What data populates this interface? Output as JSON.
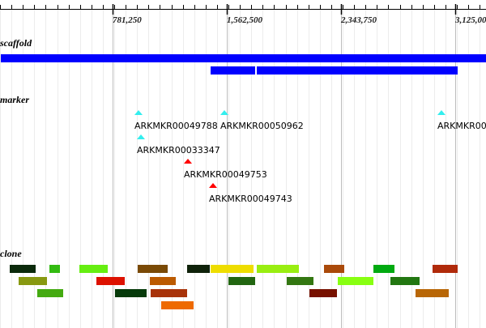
{
  "ruler": {
    "tick_labels": [
      "781,250",
      "1,562,500",
      "2,343,750",
      "3,125,00"
    ]
  },
  "tracks": {
    "scaffold": {
      "label": "scaffold",
      "color": "#0000ff"
    },
    "marker": {
      "label": "marker",
      "items": [
        {
          "name": "ARKMKR00049788",
          "color": "#33eeee"
        },
        {
          "name": "ARKMKR00050962",
          "color": "#33eeee"
        },
        {
          "name": "ARKMKR000",
          "color": "#33eeee"
        },
        {
          "name": "ARKMKR00033347",
          "color": "#33eeee"
        },
        {
          "name": "ARKMKR00049753",
          "color": "#ff0000"
        },
        {
          "name": "ARKMKR00049743",
          "color": "#ff0000"
        }
      ]
    },
    "clone": {
      "label": "clone",
      "colors": [
        "#0b2a0b",
        "#33bb11",
        "#66ee11",
        "#7a4a06",
        "#0f220a",
        "#eedd00",
        "#99ee11",
        "#aa4a0a",
        "#00aa11",
        "#b02a0a",
        "#889911",
        "#dd1100",
        "#bb5a00",
        "#226611",
        "#337711",
        "#88ff11",
        "#227711",
        "#44aa11",
        "#063a0a",
        "#a8330a",
        "#771100",
        "#b86606",
        "#ee6a00"
      ]
    }
  }
}
